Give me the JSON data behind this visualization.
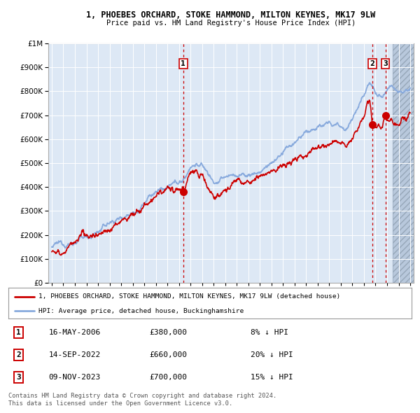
{
  "title1": "1, PHOEBES ORCHARD, STOKE HAMMOND, MILTON KEYNES, MK17 9LW",
  "title2": "Price paid vs. HM Land Registry's House Price Index (HPI)",
  "legend_red": "1, PHOEBES ORCHARD, STOKE HAMMOND, MILTON KEYNES, MK17 9LW (detached house)",
  "legend_blue": "HPI: Average price, detached house, Buckinghamshire",
  "transactions": [
    {
      "label": "1",
      "date": "16-MAY-2006",
      "price": 380000,
      "pct": "8%",
      "dir": "↓",
      "x_year": 2006.37
    },
    {
      "label": "2",
      "date": "14-SEP-2022",
      "price": 660000,
      "pct": "20%",
      "dir": "↓",
      "x_year": 2022.71
    },
    {
      "label": "3",
      "date": "09-NOV-2023",
      "price": 700000,
      "pct": "15%",
      "dir": "↓",
      "x_year": 2023.86
    }
  ],
  "footer1": "Contains HM Land Registry data © Crown copyright and database right 2024.",
  "footer2": "This data is licensed under the Open Government Licence v3.0.",
  "ylim": [
    0,
    1000000
  ],
  "xlim_start": 1994.7,
  "xlim_end": 2026.3,
  "fig_bg": "#ffffff",
  "plot_bg": "#dde8f5",
  "grid_color": "#ffffff",
  "red_color": "#cc0000",
  "blue_color": "#88aadd",
  "future_hatch_color": "#b8c8dc",
  "future_start": 2024.5
}
